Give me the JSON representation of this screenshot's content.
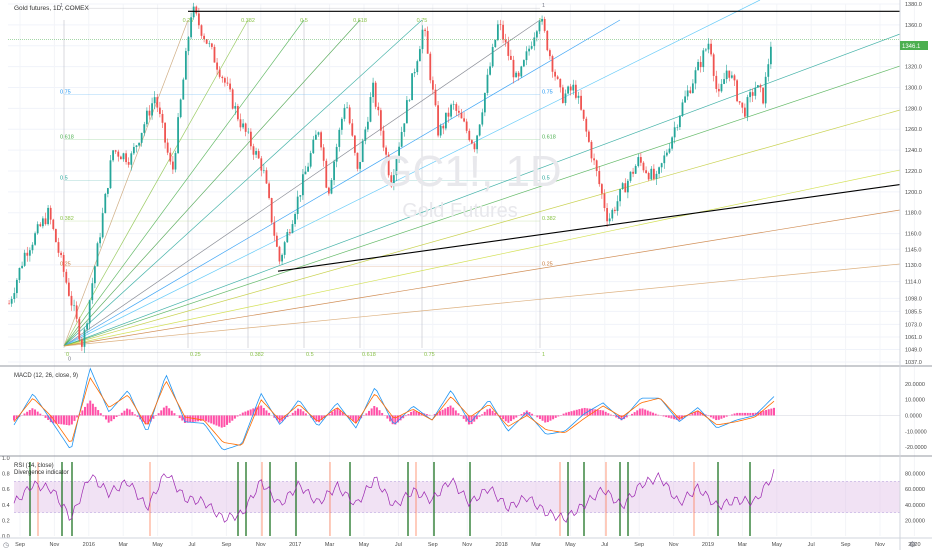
{
  "main": {
    "symbol_title": "Gold futures, 1D, COMEX",
    "watermark_ticker": "GC1!, 1D",
    "watermark_name": "Gold Futures",
    "last_price_badge": "1346.1",
    "price_scale_labels": [
      "1380.0",
      "1360.0",
      "1340.0",
      "1320.0",
      "1300.0",
      "1280.0",
      "1260.0",
      "1240.0",
      "1220.0",
      "1200.0",
      "1180.0",
      "1160.0",
      "1145.0",
      "1130.0",
      "1114.0",
      "1098.0",
      "1085.5",
      "1073.0",
      "1061.0",
      "1049.0",
      "1037.0"
    ],
    "fib_levels_left": [
      "1",
      "0.75",
      "0.618",
      "0.5",
      "0.382",
      "0.25",
      "0"
    ],
    "fib_levels_right": [
      "1",
      "0.75",
      "0.618",
      "0.5",
      "0.382",
      "0.25"
    ],
    "fib_time_top": [
      "0.25",
      "0.382",
      "0.5",
      "0.618",
      "0.75",
      "1"
    ],
    "fib_time_bottom": [
      "0",
      "0.25",
      "0.382",
      "0.5",
      "0.618",
      "0.75",
      "1"
    ]
  },
  "macd": {
    "title": "MACD (12, 26, close, 9)",
    "scale_labels": [
      "20.0000",
      "10.0000",
      "0.0000",
      "-10.0000",
      "-20.0000"
    ]
  },
  "rsi": {
    "title": "RSI (14, close)",
    "subtitle": "Divergence indicator",
    "left_scale_labels": [
      "1.0",
      "0.8",
      "0.6",
      "0.4",
      "0.2",
      "0.0"
    ],
    "right_scale_labels": [
      "80.0000",
      "60.0000",
      "40.0000",
      "20.0000"
    ]
  },
  "time_axis": {
    "labels": [
      "Sep",
      "Nov",
      "2016",
      "Mar",
      "May",
      "Jul",
      "Sep",
      "Nov",
      "2017",
      "Mar",
      "May",
      "Jul",
      "Sep",
      "Nov",
      "2018",
      "Mar",
      "May",
      "Jul",
      "Sep",
      "Nov",
      "2019",
      "Mar",
      "May",
      "Jul",
      "Sep",
      "Nov",
      "2020"
    ]
  },
  "colors": {
    "bull": "#26a69a",
    "bear": "#ef5350",
    "macd_line": "#2196f3",
    "signal_line": "#ff6d00",
    "histogram": "#ff3399",
    "rsi_line": "#9c27b0",
    "rsi_band": "#e1bee7",
    "bull_div": "#2e7d32",
    "bear_div": "#ff7043",
    "trend_line": "#000000",
    "badge": "#4caf50"
  },
  "chart_data": [
    {
      "type": "candlestick",
      "title": "Gold futures, 1D, COMEX",
      "x_range": [
        "2015-08",
        "2020-01"
      ],
      "ylim": [
        1037,
        1380
      ],
      "price_series": {
        "dates": [
          "2015-08-03",
          "2015-09-01",
          "2015-10-15",
          "2015-12-17",
          "2016-02-11",
          "2016-03-15",
          "2016-04-29",
          "2016-05-31",
          "2016-07-06",
          "2016-08-31",
          "2016-10-03",
          "2016-11-15",
          "2016-12-15",
          "2017-02-27",
          "2017-03-15",
          "2017-04-17",
          "2017-05-09",
          "2017-06-06",
          "2017-07-10",
          "2017-09-08",
          "2017-10-06",
          "2017-11-01",
          "2017-12-12",
          "2018-01-25",
          "2018-03-01",
          "2018-04-11",
          "2018-05-21",
          "2018-06-15",
          "2018-07-19",
          "2018-08-16",
          "2018-09-10",
          "2018-10-11",
          "2018-11-13",
          "2018-12-31",
          "2019-02-20",
          "2019-03-07",
          "2019-03-25",
          "2019-04-23",
          "2019-05-15",
          "2019-05-30",
          "2019-06-14"
        ],
        "close": [
          1093,
          1141,
          1180,
          1053,
          1240,
          1232,
          1292,
          1217,
          1376,
          1312,
          1268,
          1222,
          1133,
          1263,
          1198,
          1290,
          1218,
          1300,
          1210,
          1359,
          1255,
          1283,
          1245,
          1362,
          1303,
          1369,
          1290,
          1300,
          1231,
          1173,
          1200,
          1230,
          1210,
          1283,
          1346,
          1287,
          1320,
          1275,
          1301,
          1290,
          1346
        ]
      },
      "fib_retracement_levels": [
        0,
        0.25,
        0.382,
        0.5,
        0.618,
        0.75,
        1
      ],
      "fib_time_zones": [
        0,
        0.25,
        0.382,
        0.5,
        0.618,
        0.75,
        1
      ],
      "last_price": 1346.1
    },
    {
      "type": "line",
      "title": "MACD (12, 26, close, 9)",
      "series": [
        {
          "name": "MACD",
          "values": [
            -6,
            14,
            -4,
            -22,
            30,
            2,
            16,
            -11,
            26,
            -4,
            -5,
            -22,
            -18,
            14,
            -6,
            10,
            -7,
            8,
            -8,
            18,
            -6,
            6,
            -3,
            16,
            -5,
            10,
            -10,
            2,
            -12,
            -10,
            1,
            8,
            -3,
            11,
            11,
            -4,
            5,
            -8,
            -3,
            0,
            12
          ]
        },
        {
          "name": "Signal",
          "values": [
            -4,
            11,
            -1,
            -18,
            24,
            5,
            13,
            -7,
            22,
            -1,
            -3,
            -17,
            -19,
            10,
            -3,
            7,
            -4,
            5,
            -5,
            14,
            -2,
            4,
            -3,
            12,
            -1,
            7,
            -7,
            0,
            -9,
            -11,
            -2,
            6,
            -1,
            8,
            11,
            -2,
            3,
            -6,
            -4,
            -1,
            9
          ]
        }
      ],
      "ylim": [
        -25,
        30
      ]
    },
    {
      "type": "line",
      "title": "RSI (14, close)",
      "subtitle": "Divergence indicator",
      "ylim": [
        0,
        100
      ],
      "overbought": 70,
      "oversold": 30,
      "values": [
        42,
        66,
        60,
        22,
        78,
        55,
        70,
        36,
        82,
        48,
        44,
        22,
        28,
        70,
        40,
        66,
        42,
        64,
        40,
        74,
        38,
        58,
        46,
        72,
        42,
        62,
        36,
        50,
        30,
        22,
        40,
        60,
        38,
        66,
        76,
        42,
        62,
        38,
        46,
        44,
        80
      ]
    }
  ]
}
